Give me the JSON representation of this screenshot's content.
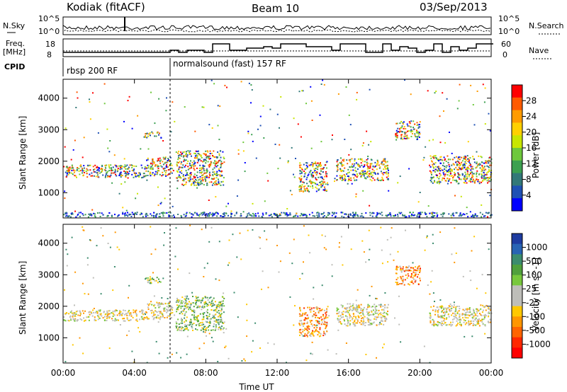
{
  "header": {
    "station": "Kodiak (fitACF)",
    "beam": "Beam 10",
    "date": "03/Sep/2013"
  },
  "top_panels": {
    "nsky_label": "N.Sky",
    "nsky_ticks": [
      "10^5",
      "10^0"
    ],
    "nsearch_label": "N.Search",
    "freq_label": "Freq.",
    "freq_unit": "[MHz]",
    "freq_ticks": [
      "18",
      "8"
    ],
    "nave_label": "Nave",
    "nave_ticks": [
      "60",
      "0"
    ],
    "cpid_label": "CPID",
    "cpid_segments": [
      {
        "label": "rbsp 200 RF",
        "start_hour": 0.0
      },
      {
        "label": "normalsound (fast) 157 RF",
        "start_hour": 6.0
      }
    ]
  },
  "colorbars": {
    "power": {
      "label": "Power [dB]",
      "ticks": [
        "28",
        "24",
        "20",
        "16",
        "12",
        "8",
        "4"
      ],
      "colors": [
        "#ff0000",
        "#ff5a00",
        "#ff9b00",
        "#ffd000",
        "#c8e600",
        "#6ec83c",
        "#3ca050",
        "#327878",
        "#1e50b4",
        "#0000ff"
      ]
    },
    "velocity": {
      "label": "Velocity [m s^-1]",
      "ticks": [
        "1000",
        "500",
        "100",
        "25",
        "-25",
        "-100",
        "-500",
        "-1000"
      ],
      "colors": [
        "#1e3ca0",
        "#2864b4",
        "#3c8c6e",
        "#50a03c",
        "#78c83c",
        "#bebeb9",
        "#bebeb9",
        "#ffc800",
        "#ff9600",
        "#ff6400",
        "#ff2800",
        "#ff0000"
      ]
    }
  },
  "chart_data": [
    {
      "type": "heatmap",
      "name": "",
      "ylabel": "Slant Range [km]",
      "xlabel": "",
      "xlim": [
        0,
        24
      ],
      "ylim": [
        200,
        4600
      ],
      "yticks": [
        "4000",
        "3000",
        "2000",
        "1000"
      ],
      "xticks": [
        "00:00",
        "04:00",
        "08:00",
        "12:00",
        "16:00",
        "20:00",
        "00:00"
      ],
      "echo_regions": [
        {
          "t0": 0.0,
          "t1": 4.7,
          "r0": 1500,
          "r1": 1900,
          "value": "mixed"
        },
        {
          "t0": 4.7,
          "t1": 6.1,
          "r0": 1550,
          "r1": 2150,
          "value": "mixed"
        },
        {
          "t0": 4.5,
          "t1": 5.5,
          "r0": 2750,
          "r1": 2950,
          "value": "mixed"
        },
        {
          "t0": 6.3,
          "t1": 9.0,
          "r0": 1250,
          "r1": 2350,
          "value": "mixed"
        },
        {
          "t0": 13.2,
          "t1": 14.8,
          "r0": 1050,
          "r1": 2000,
          "value": "mixed"
        },
        {
          "t0": 15.3,
          "t1": 18.2,
          "r0": 1400,
          "r1": 2100,
          "value": "mixed"
        },
        {
          "t0": 18.6,
          "t1": 20.0,
          "r0": 2700,
          "r1": 3300,
          "value": "mixed"
        },
        {
          "t0": 20.5,
          "t1": 24.0,
          "r0": 1300,
          "r1": 2200,
          "value": "mixed"
        },
        {
          "t0": 0.0,
          "t1": 24.0,
          "r0": 250,
          "r1": 400,
          "value": "ground"
        }
      ]
    },
    {
      "type": "heatmap",
      "name": "",
      "ylabel": "Slant Range [km]",
      "xlabel": "Time UT",
      "xlim": [
        0,
        24
      ],
      "ylim": [
        200,
        4600
      ],
      "yticks": [
        "4000",
        "3000",
        "2000",
        "1000"
      ],
      "xticks": [
        "00:00",
        "04:00",
        "08:00",
        "12:00",
        "16:00",
        "20:00",
        "00:00"
      ],
      "echo_regions": [
        {
          "t0": 0.0,
          "t1": 4.7,
          "r0": 1550,
          "r1": 1900,
          "value": "low"
        },
        {
          "t0": 4.7,
          "t1": 6.1,
          "r0": 1600,
          "r1": 2150,
          "value": "low"
        },
        {
          "t0": 4.5,
          "t1": 5.5,
          "r0": 2750,
          "r1": 2950,
          "value": "positive"
        },
        {
          "t0": 6.3,
          "t1": 9.0,
          "r0": 1250,
          "r1": 2350,
          "value": "positive"
        },
        {
          "t0": 13.2,
          "t1": 14.8,
          "r0": 1050,
          "r1": 2000,
          "value": "negative"
        },
        {
          "t0": 15.3,
          "t1": 18.2,
          "r0": 1400,
          "r1": 2100,
          "value": "low"
        },
        {
          "t0": 18.6,
          "t1": 20.0,
          "r0": 2700,
          "r1": 3300,
          "value": "negative"
        },
        {
          "t0": 20.5,
          "t1": 24.0,
          "r0": 1400,
          "r1": 2050,
          "value": "low"
        }
      ]
    }
  ]
}
